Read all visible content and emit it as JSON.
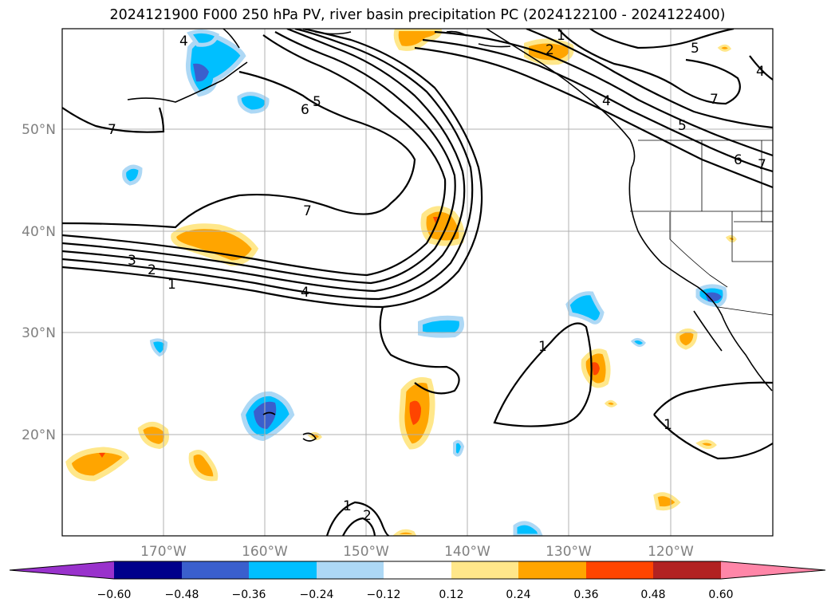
{
  "title": "2024121900 F000 250 hPa PV, river basin precipitation PC (2024122100 - 2024122400)",
  "map": {
    "lon_labels": [
      "170°W",
      "160°W",
      "150°W",
      "140°W",
      "130°W",
      "120°W"
    ],
    "lat_labels": [
      "20°N",
      "30°N",
      "40°N",
      "50°N"
    ],
    "pv_contour_labels": [
      "1",
      "2",
      "3",
      "4",
      "5",
      "6",
      "7"
    ]
  },
  "colorbar": {
    "ticks": [
      "−0.60",
      "−0.48",
      "−0.36",
      "−0.24",
      "−0.12",
      "0.12",
      "0.24",
      "0.36",
      "0.48",
      "0.60"
    ],
    "colors": [
      "#9932cc",
      "#00008b",
      "#3a5fcd",
      "#00bfff",
      "#add8f5",
      "#ffffff",
      "#ffe78a",
      "#ffa500",
      "#ff4500",
      "#b22222",
      "#ff86a8"
    ]
  }
}
